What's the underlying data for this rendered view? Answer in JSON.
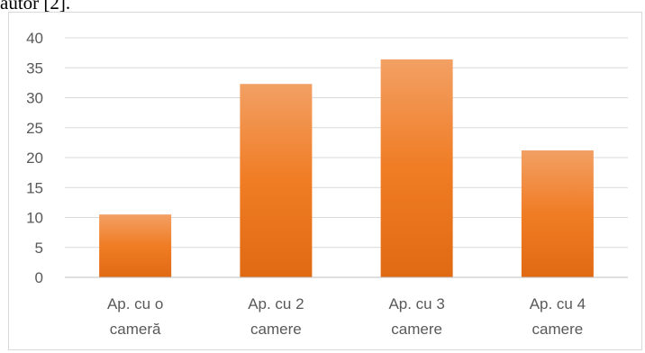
{
  "document": {
    "top_fragment": "autor [2]."
  },
  "colors": {
    "bar_top": "#f2a064",
    "bar_mid": "#f07c24",
    "bar_bottom": "#e06a14",
    "grid": "#d9d9d9",
    "axis": "#bfbfbf",
    "label": "#595959"
  },
  "chart_data": {
    "type": "bar",
    "title": "",
    "xlabel": "",
    "ylabel": "",
    "categories": [
      [
        "Ap. cu o",
        "cameră"
      ],
      [
        "Ap. cu 2",
        "camere"
      ],
      [
        "Ap. cu 3",
        "camere"
      ],
      [
        "Ap. cu 4",
        "camere"
      ]
    ],
    "values": [
      10.5,
      32.3,
      36.4,
      21.2
    ],
    "ylim": [
      0,
      40
    ],
    "yticks": [
      "0",
      "5",
      "10",
      "15",
      "20",
      "25",
      "30",
      "35",
      "40"
    ],
    "grid": true,
    "legend": "none"
  }
}
